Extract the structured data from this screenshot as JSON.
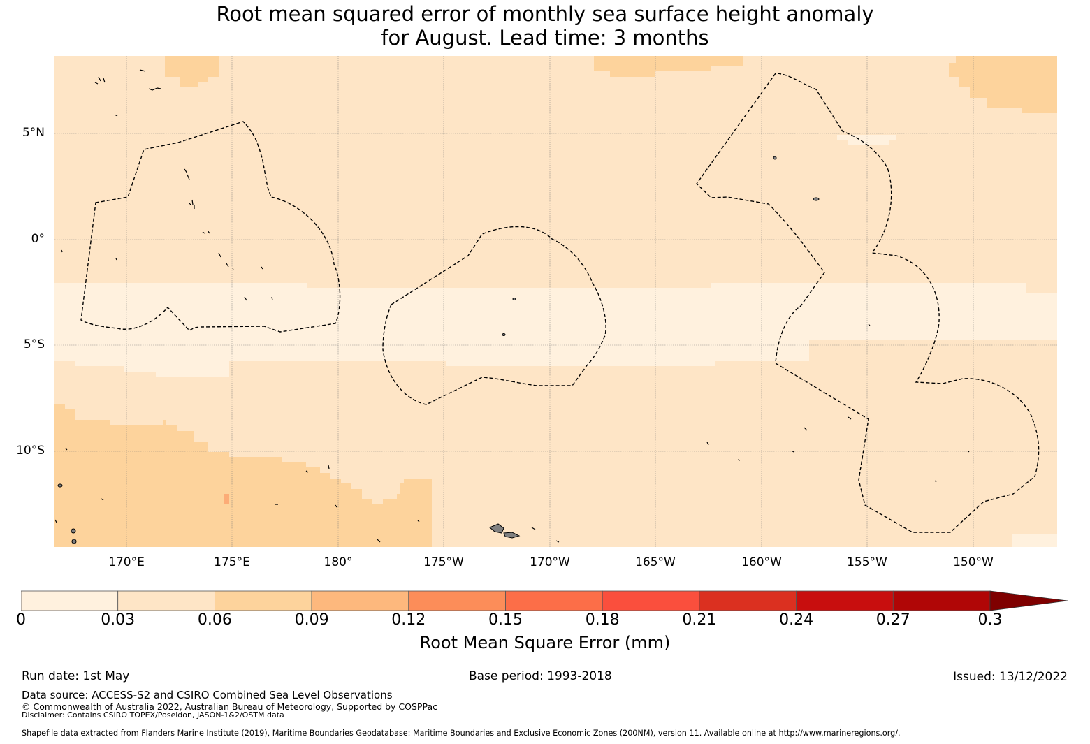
{
  "title": {
    "line1": "Root mean squared error of monthly sea surface height anomaly",
    "line2": "for August. Lead time: 3 months"
  },
  "map": {
    "lat_labels": [
      "5°N",
      "0°",
      "5°S",
      "10°S"
    ],
    "lon_labels": [
      "170°E",
      "175°E",
      "180°",
      "175°W",
      "170°W",
      "165°W",
      "160°W",
      "155°W",
      "150°W"
    ],
    "colors": {
      "bin_0_003": "#fff1de",
      "bin_003_006": "#fee5c6",
      "bin_006_009": "#fdd39c",
      "land": "#808080",
      "grid": "#808080",
      "boundary": "#000000"
    }
  },
  "colorbar": {
    "ticks": [
      "0",
      "0.03",
      "0.06",
      "0.09",
      "0.12",
      "0.15",
      "0.18",
      "0.21",
      "0.24",
      "0.27",
      "0.3"
    ],
    "colors": [
      "#fff1de",
      "#fee5c6",
      "#fdd39c",
      "#fdb87d",
      "#fc8d59",
      "#fc6e48",
      "#fa4f3d",
      "#db3020",
      "#c80e0e",
      "#b00606",
      "#7f0000"
    ],
    "extend": "max",
    "label": "Root Mean Square Error (mm)"
  },
  "footer": {
    "run_date": "Run date: 1st May",
    "base_period": "Base period: 1993-2018",
    "issued": "Issued: 13/12/2022",
    "data_source": "Data source: ACCESS-S2 and CSIRO Combined Sea Level Observations",
    "copyright": "© Commonwealth of Australia 2022, Australian Bureau of Meteorology, Supported by COSPPac",
    "disclaimer": "Disclaimer: Contains CSIRO TOPEX/Poseidon, JASON-1&2/OSTM data",
    "shapefile": "Shapefile data extracted from Flanders Marine Institute (2019), Maritime Boundaries Geodatabase: Maritime Boundaries and Exclusive Economic Zones (200NM), version 11. Available online at http://www.marineregions.org/."
  }
}
